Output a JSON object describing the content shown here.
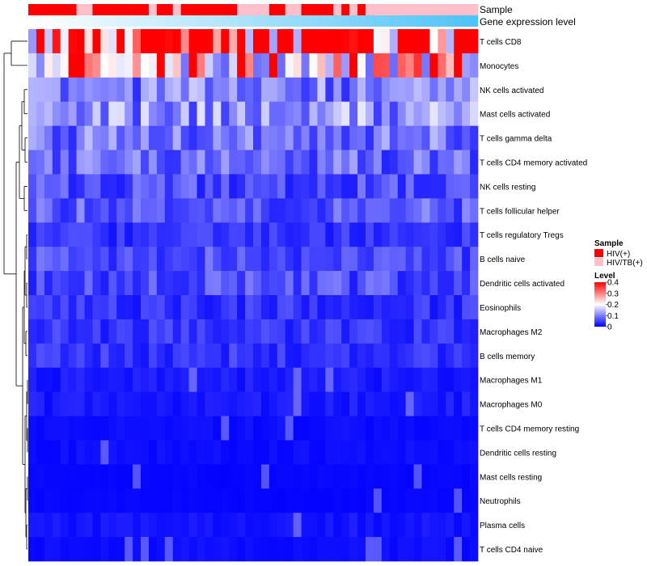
{
  "chart_data": {
    "type": "heatmap",
    "title": "",
    "annotation_tracks": [
      {
        "name": "Sample",
        "type": "categorical"
      },
      {
        "name": "Gene expression level",
        "type": "continuous",
        "low_color": "#ffffff",
        "high_color": "#4fc3f7"
      }
    ],
    "sample_categories": [
      {
        "label": "HIV(+)",
        "color": "#ff0000"
      },
      {
        "label": "HIV/TB(+)",
        "color": "#ffc0cb"
      }
    ],
    "sample_groups": [
      0,
      0,
      0,
      0,
      0,
      0,
      1,
      1,
      0,
      0,
      0,
      0,
      0,
      0,
      0,
      1,
      0,
      0,
      1,
      0,
      0,
      0,
      0,
      0,
      0,
      0,
      1,
      1,
      1,
      1,
      0,
      0,
      1,
      1,
      0,
      0,
      0,
      0,
      1,
      0,
      1,
      0,
      1,
      1,
      1,
      1,
      1,
      1,
      1,
      1,
      1,
      1,
      1,
      1,
      1,
      1
    ],
    "rows": [
      "T cells CD8",
      "Monocytes",
      "NK cells activated",
      "Mast cells activated",
      "T cells gamma delta",
      "T cells CD4 memory activated",
      "NK cells resting",
      "T cells follicular helper",
      "T cells regulatory  Tregs",
      "B cells naive",
      "Dendritic cells activated",
      "Eosinophils",
      "Macrophages M2",
      "B cells memory",
      "Macrophages M1",
      "Macrophages M0",
      "T cells CD4 memory resting",
      "Dendritic cells resting",
      "Mast cells resting",
      "Neutrophils",
      "Plasma cells",
      "T cells CD4 naive"
    ],
    "row_base_levels": [
      0.34,
      0.22,
      0.1,
      0.11,
      0.09,
      0.08,
      0.06,
      0.07,
      0.04,
      0.06,
      0.06,
      0.04,
      0.04,
      0.04,
      0.02,
      0.02,
      0.01,
      0.01,
      0.005,
      0.005,
      0.015,
      0.01
    ],
    "color_legend": {
      "title": "Level",
      "ticks": [
        "0.4",
        "0.3",
        "0.2",
        "0.1",
        "0"
      ],
      "tick_values": [
        0.4,
        0.3,
        0.2,
        0.1,
        0.0
      ],
      "min": 0,
      "max": 0.4,
      "colors": [
        "#0000ff",
        "#ffffff",
        "#ff0000"
      ]
    },
    "sample_legend_title": "Sample"
  }
}
